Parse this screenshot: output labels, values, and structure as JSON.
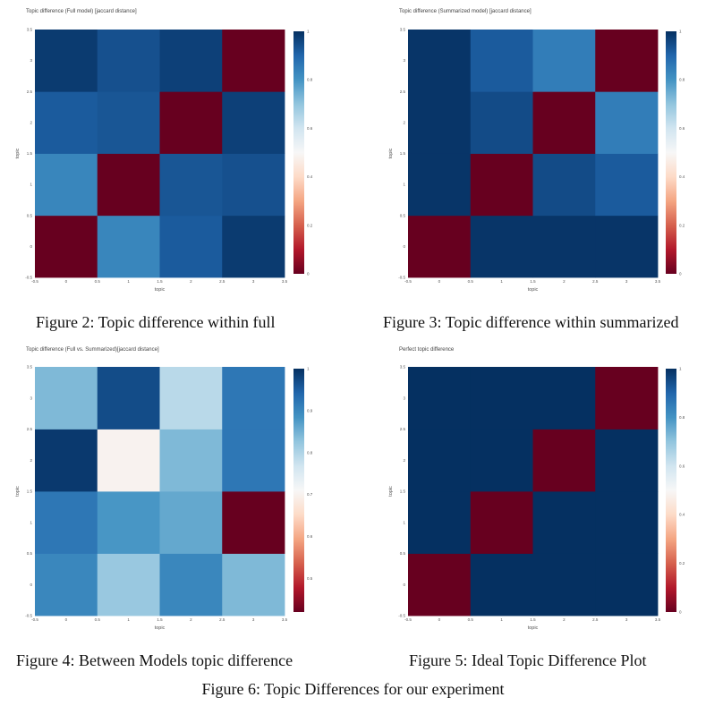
{
  "colorscale": {
    "low": "#67001f",
    "mid": "#f7f7f7",
    "high": "#053061",
    "stops": [
      "#67001f",
      "#b2182b",
      "#d6604d",
      "#f4a582",
      "#fddbc7",
      "#f7f7f7",
      "#d1e5f0",
      "#92c5de",
      "#4393c3",
      "#2166ac",
      "#053061"
    ]
  },
  "main_caption": "Figure 6: Topic Differences for our experiment",
  "panels": [
    {
      "caption": "Figure 2: Topic difference within full",
      "chart_title": "Topic difference (Full model) [jaccard distance]"
    },
    {
      "caption": "Figure 3: Topic difference within summarized",
      "chart_title": "Topic difference (Summarized model) [jaccard distance]"
    },
    {
      "caption": "Figure 4: Between Models topic difference",
      "chart_title": "Topic difference (Full vs. Summarized)[jaccard distance]"
    },
    {
      "caption": "Figure 5: Ideal Topic Difference Plot",
      "chart_title": "Perfect topic difference"
    }
  ],
  "chart_data": [
    {
      "type": "heatmap",
      "title": "Topic difference (Full model) [jaccard distance]",
      "xlabel": "topic",
      "ylabel": "topic",
      "x": [
        0,
        1,
        2,
        3
      ],
      "y": [
        0,
        1,
        2,
        3
      ],
      "x_tick_labels": [
        "-0.5",
        "0",
        "0.5",
        "1",
        "1.5",
        "2",
        "2.5",
        "3",
        "3.5"
      ],
      "y_tick_labels": [
        "-0.5",
        "0",
        "0.5",
        "1",
        "1.5",
        "2",
        "2.5",
        "3",
        "3.5"
      ],
      "xlim": [
        -0.5,
        3.5
      ],
      "ylim": [
        -0.5,
        3.5
      ],
      "z": [
        [
          0.0,
          0.83,
          0.92,
          0.98
        ],
        [
          0.83,
          0.0,
          0.93,
          0.94
        ],
        [
          0.92,
          0.93,
          0.0,
          0.97
        ],
        [
          0.98,
          0.94,
          0.97,
          0.0
        ]
      ],
      "zlim": [
        0,
        1
      ],
      "colorbar_ticks": [
        "0",
        "0.2",
        "0.4",
        "0.6",
        "0.8",
        "1"
      ]
    },
    {
      "type": "heatmap",
      "title": "Topic difference (Summarized model) [jaccard distance]",
      "xlabel": "topic",
      "ylabel": "topic",
      "x": [
        0,
        1,
        2,
        3
      ],
      "y": [
        0,
        1,
        2,
        3
      ],
      "x_tick_labels": [
        "-0.5",
        "0",
        "0.5",
        "1",
        "1.5",
        "2",
        "2.5",
        "3",
        "3.5"
      ],
      "y_tick_labels": [
        "-0.5",
        "0",
        "0.5",
        "1",
        "1.5",
        "2",
        "2.5",
        "3",
        "3.5"
      ],
      "xlim": [
        -0.5,
        3.5
      ],
      "ylim": [
        -0.5,
        3.5
      ],
      "z": [
        [
          0.0,
          0.99,
          0.99,
          0.99
        ],
        [
          0.99,
          0.0,
          0.95,
          0.92
        ],
        [
          0.99,
          0.95,
          0.0,
          0.85
        ],
        [
          0.99,
          0.92,
          0.85,
          0.0
        ]
      ],
      "zlim": [
        0,
        1
      ],
      "colorbar_ticks": [
        "0",
        "0.2",
        "0.4",
        "0.6",
        "0.8",
        "1"
      ]
    },
    {
      "type": "heatmap",
      "title": "Topic difference (Full vs. Summarized)[jaccard distance]",
      "xlabel": "topic",
      "ylabel": "topic",
      "x": [
        0,
        1,
        2,
        3
      ],
      "y": [
        0,
        1,
        2,
        3
      ],
      "x_tick_labels": [
        "-0.5",
        "0",
        "0.5",
        "1",
        "1.5",
        "2",
        "2.5",
        "3",
        "3.5"
      ],
      "y_tick_labels": [
        "-0.5",
        "0",
        "0.5",
        "1",
        "1.5",
        "2",
        "2.5",
        "3",
        "3.5"
      ],
      "xlim": [
        -0.5,
        3.5
      ],
      "ylim": [
        -0.5,
        3.5
      ],
      "z": [
        [
          0.9,
          0.82,
          0.9,
          0.84
        ],
        [
          0.92,
          0.88,
          0.86,
          0.42
        ],
        [
          0.99,
          0.7,
          0.84,
          0.92
        ],
        [
          0.84,
          0.97,
          0.79,
          0.92
        ]
      ],
      "zlim": [
        0.42,
        1
      ],
      "colorbar_ticks": [
        "0.5",
        "0.6",
        "0.7",
        "0.8",
        "0.9",
        "1"
      ],
      "colorbar_tick_values": [
        0.5,
        0.6,
        0.7,
        0.8,
        0.9,
        1.0
      ]
    },
    {
      "type": "heatmap",
      "title": "Perfect topic difference",
      "xlabel": "topic",
      "ylabel": "topic",
      "x": [
        0,
        1,
        2,
        3
      ],
      "y": [
        0,
        1,
        2,
        3
      ],
      "x_tick_labels": [
        "-0.5",
        "0",
        "0.5",
        "1",
        "1.5",
        "2",
        "2.5",
        "3",
        "3.5"
      ],
      "y_tick_labels": [
        "-0.5",
        "0",
        "0.5",
        "1",
        "1.5",
        "2",
        "2.5",
        "3",
        "3.5"
      ],
      "xlim": [
        -0.5,
        3.5
      ],
      "ylim": [
        -0.5,
        3.5
      ],
      "z": [
        [
          0,
          1,
          1,
          1
        ],
        [
          1,
          0,
          1,
          1
        ],
        [
          1,
          1,
          0,
          1
        ],
        [
          1,
          1,
          1,
          0
        ]
      ],
      "zlim": [
        0,
        1
      ],
      "colorbar_ticks": [
        "0",
        "0.2",
        "0.4",
        "0.6",
        "0.8",
        "1"
      ]
    }
  ]
}
